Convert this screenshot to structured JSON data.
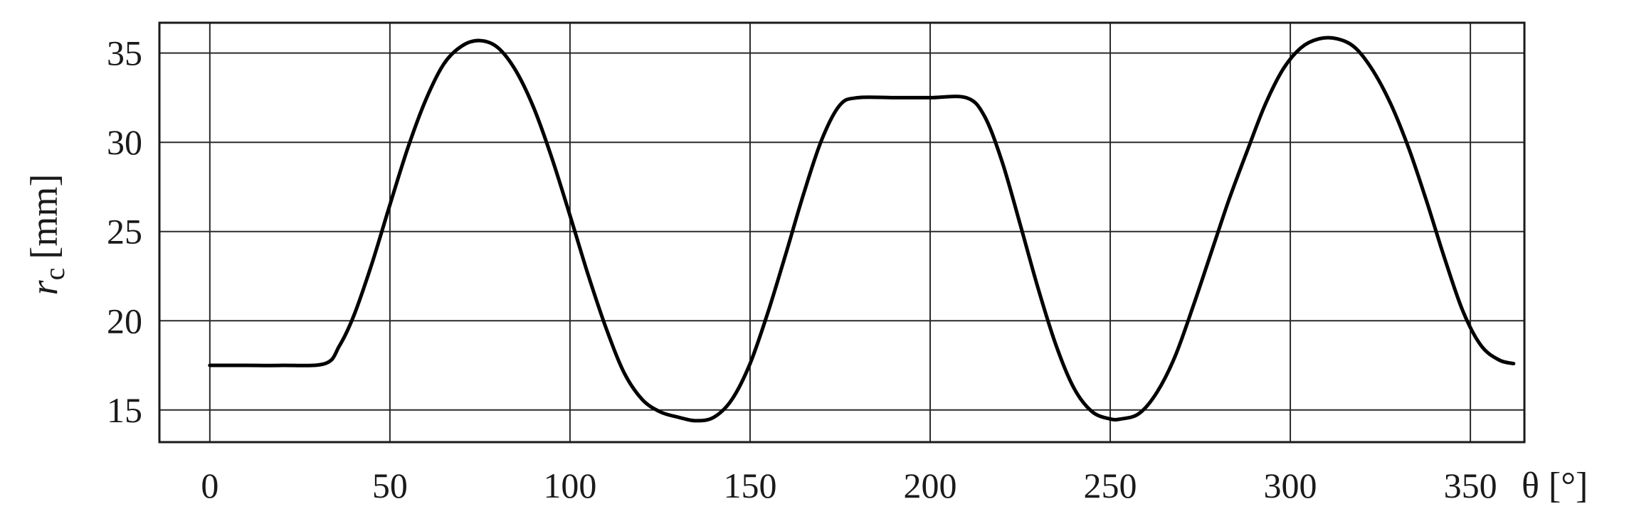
{
  "chart_data": {
    "type": "line",
    "title": "",
    "xlabel": "θ [°]",
    "ylabel_symbol": "r",
    "ylabel_subscript": "c",
    "ylabel_unit": "[mm]",
    "xlim": [
      -14,
      365
    ],
    "ylim": [
      13.2,
      36.7
    ],
    "grid": true,
    "legend": "none",
    "xticks": [
      0,
      50,
      100,
      150,
      200,
      250,
      300,
      350
    ],
    "yticks": [
      15,
      20,
      25,
      30,
      35
    ],
    "series": [
      {
        "x": [
          0,
          10,
          20,
          32,
          36,
          40,
          45,
          50,
          55,
          60,
          65,
          70,
          75,
          80,
          85,
          90,
          95,
          100,
          105,
          110,
          115,
          120,
          125,
          130,
          135,
          140,
          145,
          150,
          155,
          160,
          165,
          170,
          175,
          180,
          190,
          200,
          210,
          215,
          220,
          225,
          230,
          235,
          240,
          245,
          250,
          253,
          258,
          263,
          268,
          273,
          278,
          283,
          288,
          293,
          298,
          303,
          308,
          313,
          318,
          323,
          328,
          333,
          338,
          343,
          348,
          353,
          358,
          362
        ],
        "values": [
          17.5,
          17.5,
          17.5,
          17.6,
          18.6,
          20.3,
          23.2,
          26.5,
          29.7,
          32.4,
          34.4,
          35.4,
          35.7,
          35.3,
          34.0,
          31.9,
          29.1,
          25.9,
          22.6,
          19.6,
          17.1,
          15.6,
          14.9,
          14.6,
          14.4,
          14.6,
          15.6,
          17.6,
          20.5,
          23.8,
          27.2,
          30.2,
          32.1,
          32.5,
          32.5,
          32.5,
          32.5,
          31.5,
          28.9,
          25.4,
          21.8,
          18.6,
          16.2,
          14.9,
          14.5,
          14.5,
          14.8,
          16.0,
          18.0,
          20.8,
          23.8,
          26.8,
          29.5,
          32.1,
          34.1,
          35.3,
          35.8,
          35.8,
          35.3,
          34.0,
          32.1,
          29.6,
          26.6,
          23.4,
          20.5,
          18.6,
          17.8,
          17.6
        ]
      }
    ]
  }
}
